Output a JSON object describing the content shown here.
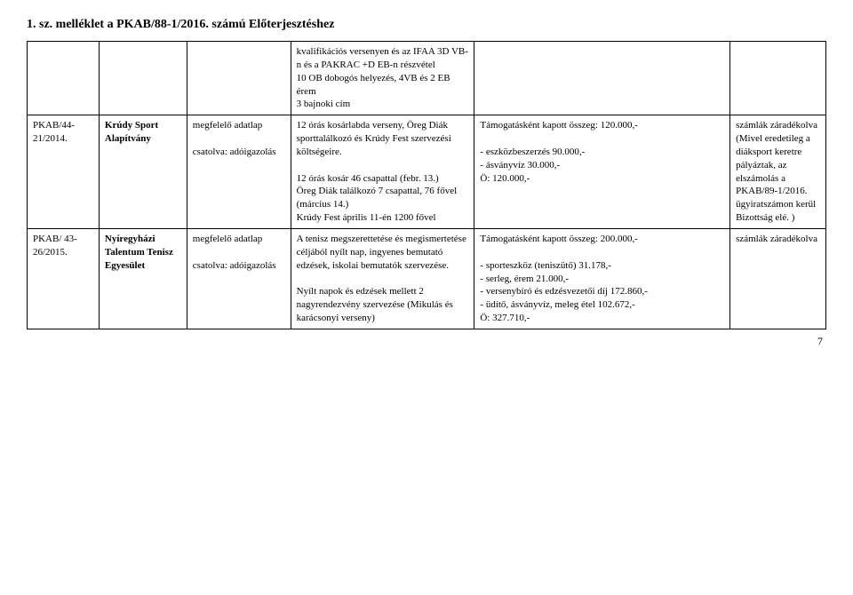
{
  "header": {
    "text": "1. sz. melléklet a PKAB/88-1/2016. számú Előterjesztéshez"
  },
  "table": {
    "columns": [
      "col1",
      "col2",
      "col3",
      "col4",
      "col5",
      "col6"
    ],
    "row0": {
      "c4": "kvalifikációs versenyen és az IFAA 3D VB-n és a PAKRAC +D EB-n részvétel\n10 OB dobogós helyezés, 4VB és 2 EB érem\n3 bajnoki cím"
    },
    "row1": {
      "c1": "PKAB/44-21/2014.",
      "c2": "Krúdy Sport Alapítvány",
      "c3": "megfelelő adatlap\n\ncsatolva: adóigazolás",
      "c4": "12 órás kosárlabda verseny, Öreg Diák sporttalálkozó és Krúdy Fest szervezési költségeire.\n\n12 órás kosár 46 csapattal (febr. 13.)\nÖreg Diák találkozó 7 csapattal, 76 fővel (március 14.)\nKrúdy Fest április 11-én 1200 fővel",
      "c5": "Támogatásként kapott összeg: 120.000,-\n\n- eszközbeszerzés 90.000,-\n- ásványvíz 30.000,-\nÖ: 120.000,-",
      "c6": "számlák záradékolva (Mivel eredetileg a diáksport keretre pályáztak, az elszámolás a PKAB/89-1/2016. ügyiratszámon kerül Bizottság elé. )"
    },
    "row2": {
      "c1": "PKAB/ 43-26/2015.",
      "c2": "Nyíregyházi Talentum Tenisz Egyesület",
      "c3": "megfelelő adatlap\n\ncsatolva: adóigazolás",
      "c4": "A tenisz megszerettetése és megismertetése céljából nyílt nap, ingyenes bemutató edzések, iskolai bemutatók szervezése.\n\nNyílt napok és edzések mellett 2 nagyrendezvény szervezése (Mikulás és karácsonyi verseny)",
      "c5": "Támogatásként kapott összeg: 200.000,-\n\n- sporteszköz (teniszütő) 31.178,-\n- serleg, érem 21.000,-\n- versenybíró és edzésvezetői díj 172.860,-\n- üdítő, ásványvíz, meleg étel 102.672,-\nÖ: 327.710,-",
      "c6": "számlák záradékolva"
    }
  },
  "pagenum": "7"
}
